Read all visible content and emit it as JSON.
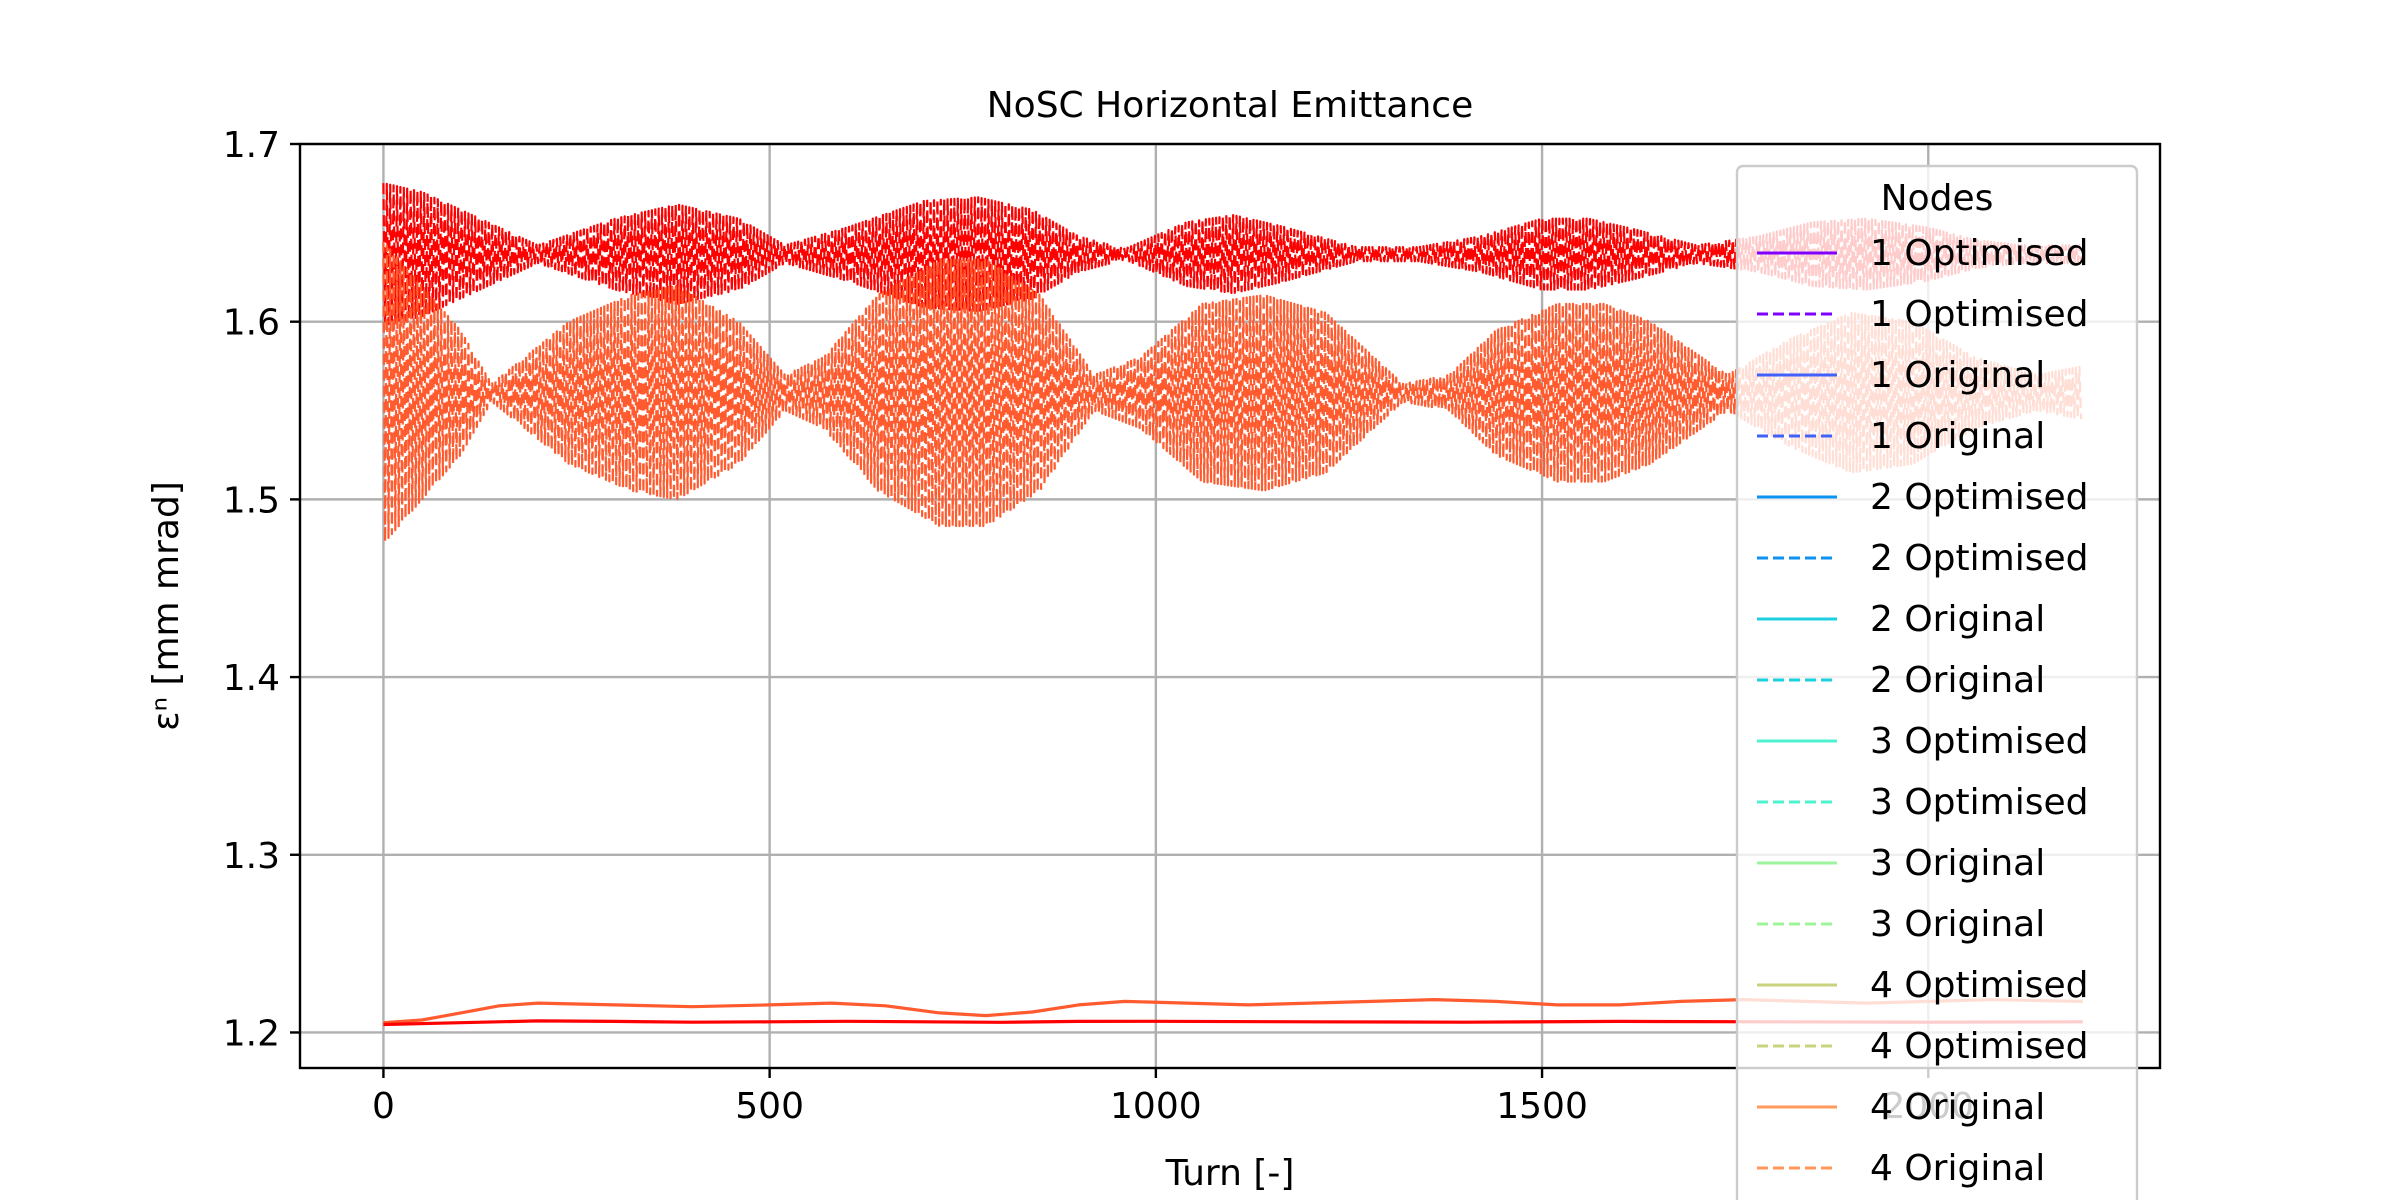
{
  "chart_data": {
    "type": "line",
    "title": "NoSC Horizontal Emittance",
    "xlabel": "Turn [-]",
    "ylabel": "εⁿ [mm mrad]",
    "xlim": [
      -108,
      2300
    ],
    "ylim": [
      1.18,
      1.7
    ],
    "xticks": [
      0,
      500,
      1000,
      1500,
      2000
    ],
    "xtick_labels": [
      "0",
      "500",
      "1000",
      "1500",
      "2000"
    ],
    "yticks": [
      1.2,
      1.3,
      1.4,
      1.5,
      1.6,
      1.7
    ],
    "ytick_labels": [
      "1.2",
      "1.3",
      "1.4",
      "1.5",
      "1.6",
      "1.7"
    ],
    "grid": true,
    "legend": {
      "title": "Nodes",
      "position": "right",
      "entries": [
        {
          "label": "1 Optimised",
          "color": "#8000ff",
          "dash": false
        },
        {
          "label": "1 Optimised",
          "color": "#8000ff",
          "dash": true
        },
        {
          "label": "1 Original",
          "color": "#4062fa",
          "dash": false
        },
        {
          "label": "1 Original",
          "color": "#4062fa",
          "dash": true
        },
        {
          "label": "2 Optimised",
          "color": "#0c93f3",
          "dash": false
        },
        {
          "label": "2 Optimised",
          "color": "#0c93f3",
          "dash": true
        },
        {
          "label": "2 Original",
          "color": "#1cd0e0",
          "dash": false
        },
        {
          "label": "2 Original",
          "color": "#1cd0e0",
          "dash": true
        },
        {
          "label": "3 Optimised",
          "color": "#4df3ce",
          "dash": false
        },
        {
          "label": "3 Optimised",
          "color": "#4df3ce",
          "dash": true
        },
        {
          "label": "3 Original",
          "color": "#9cf59c",
          "dash": false
        },
        {
          "label": "3 Original",
          "color": "#9cf59c",
          "dash": true
        },
        {
          "label": "4 Optimised",
          "color": "#c9d37e",
          "dash": false
        },
        {
          "label": "4 Optimised",
          "color": "#c9d37e",
          "dash": true
        },
        {
          "label": "4 Original",
          "color": "#ff9a5c",
          "dash": false
        },
        {
          "label": "4 Original",
          "color": "#ff9a5c",
          "dash": true
        }
      ]
    },
    "series": [
      {
        "color": "#ff0000",
        "dash": true,
        "x_range": [
          0,
          2200
        ],
        "center": 1.638,
        "envelope_x": [
          0,
          50,
          100,
          200,
          300,
          380,
          460,
          520,
          600,
          700,
          770,
          840,
          900,
          960,
          1040,
          1100,
          1160,
          1260,
          1340,
          1420,
          1500,
          1560,
          1620,
          1700,
          1780,
          1850,
          1920,
          2000,
          2060,
          2120,
          2200
        ],
        "envelope_half_width": [
          0.04,
          0.035,
          0.025,
          0.005,
          0.02,
          0.028,
          0.02,
          0.005,
          0.015,
          0.03,
          0.032,
          0.025,
          0.01,
          0.003,
          0.018,
          0.022,
          0.016,
          0.004,
          0.004,
          0.01,
          0.02,
          0.02,
          0.014,
          0.005,
          0.01,
          0.018,
          0.02,
          0.015,
          0.008,
          0.005,
          0.005
        ]
      },
      {
        "color": "#ff5b2f",
        "dash": true,
        "x_range": [
          0,
          2200
        ],
        "center": 1.56,
        "envelope_x": [
          0,
          50,
          100,
          140,
          240,
          320,
          380,
          460,
          520,
          570,
          640,
          720,
          780,
          850,
          920,
          980,
          1060,
          1140,
          1220,
          1320,
          1380,
          1440,
          1520,
          1580,
          1640,
          1740,
          1820,
          1900,
          1980,
          2060,
          2140,
          2200
        ],
        "envelope_half_width": [
          0.085,
          0.06,
          0.035,
          0.005,
          0.04,
          0.055,
          0.06,
          0.04,
          0.01,
          0.02,
          0.055,
          0.075,
          0.075,
          0.055,
          0.01,
          0.02,
          0.05,
          0.055,
          0.045,
          0.005,
          0.01,
          0.035,
          0.05,
          0.05,
          0.04,
          0.01,
          0.03,
          0.045,
          0.04,
          0.02,
          0.01,
          0.015
        ]
      },
      {
        "color": "#ff5b2f",
        "dash": false,
        "x": [
          0,
          50,
          100,
          150,
          200,
          300,
          400,
          500,
          580,
          650,
          720,
          780,
          840,
          900,
          960,
          1040,
          1120,
          1200,
          1280,
          1360,
          1440,
          1520,
          1600,
          1680,
          1760,
          1840,
          1920,
          2000,
          2080,
          2200
        ],
        "y": [
          1.2055,
          1.207,
          1.211,
          1.215,
          1.2165,
          1.2155,
          1.2145,
          1.2155,
          1.2165,
          1.215,
          1.211,
          1.2095,
          1.2115,
          1.2155,
          1.2175,
          1.2165,
          1.2155,
          1.2165,
          1.2175,
          1.2185,
          1.2175,
          1.2155,
          1.2155,
          1.2175,
          1.2185,
          1.2175,
          1.2165,
          1.2175,
          1.2185,
          1.2175
        ]
      },
      {
        "color": "#ff0000",
        "dash": false,
        "x": [
          0,
          100,
          200,
          300,
          400,
          500,
          600,
          700,
          800,
          900,
          1000,
          1200,
          1400,
          1600,
          1800,
          2000,
          2200
        ],
        "y": [
          1.2045,
          1.2055,
          1.2065,
          1.2062,
          1.2058,
          1.206,
          1.2063,
          1.206,
          1.2057,
          1.2062,
          1.2063,
          1.206,
          1.2058,
          1.2062,
          1.206,
          1.2058,
          1.206
        ]
      }
    ]
  }
}
